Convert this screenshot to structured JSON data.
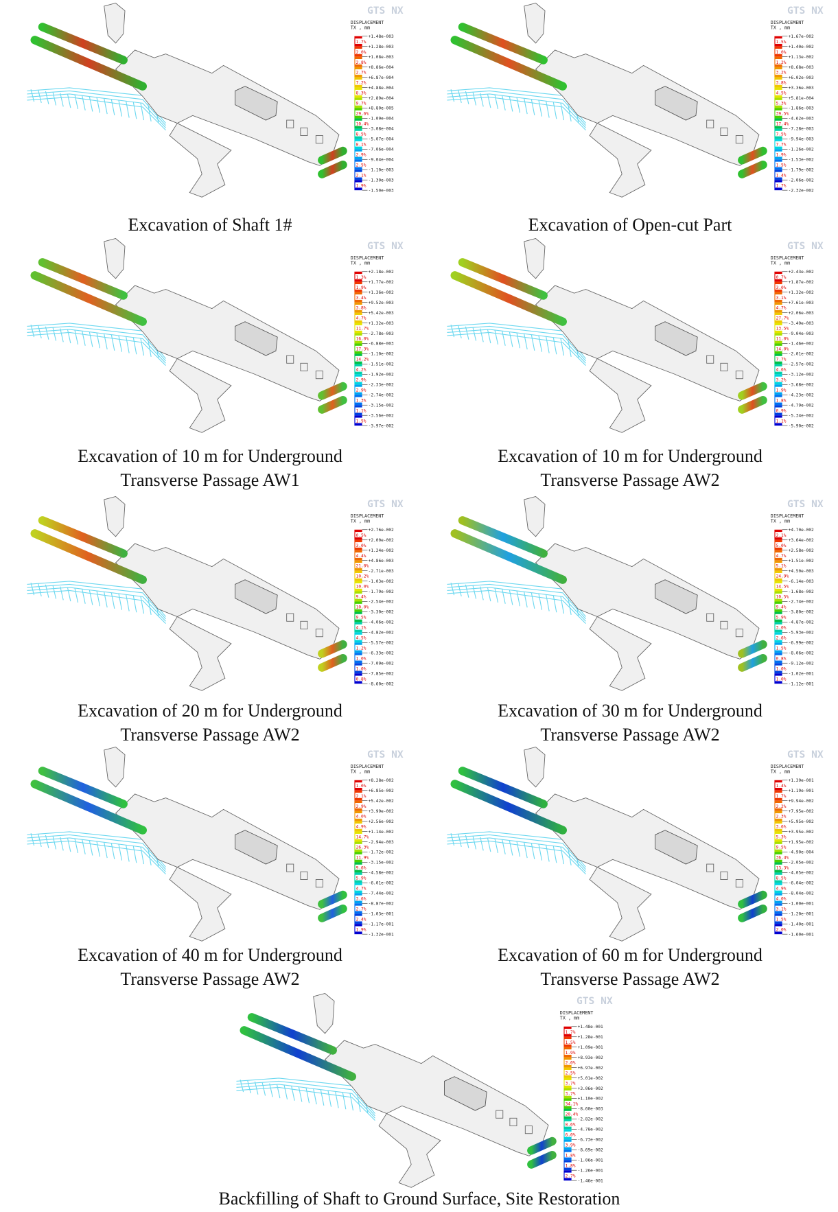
{
  "figure": {
    "logo": "GTS NX",
    "legend_title": "DISPLACEMENT",
    "legend_unit": "TX , mm",
    "panels": [
      {
        "caption": [
          "Excavation of Shaft 1#"
        ],
        "percents": [
          "1.7%",
          "2.0%",
          "2.8%",
          "2.7%",
          "7.2%",
          "8.3%",
          "9.7%",
          "29.6%",
          "10.4%",
          "8.5%",
          "8.1%",
          "2.9%",
          "2.5%",
          "2.1%",
          "1.9%"
        ],
        "values": [
          "+1.48e-003",
          "+1.28e-003",
          "+1.08e-003",
          "+8.86e-004",
          "+6.87e-004",
          "+4.88e-004",
          "+2.89e-004",
          "+8.80e-005",
          "-1.09e-004",
          "-3.08e-004",
          "-5.07e-004",
          "-7.06e-004",
          "-9.04e-004",
          "-1.10e-003",
          "-1.30e-003",
          "-1.50e-003"
        ]
      },
      {
        "caption": [
          "Excavation of Open-cut Part"
        ],
        "percents": [
          "1.5%",
          "1.0%",
          "1.2%",
          "3.2%",
          "3.8%",
          "4.5%",
          "5.3%",
          "39.5%",
          "17.4%",
          "7.5%",
          "7.7%",
          "1.9%",
          "1.5%",
          "1.4%",
          "1.7%"
        ],
        "values": [
          "+1.67e-002",
          "+1.40e-002",
          "+1.13e-002",
          "+8.68e-003",
          "+6.02e-003",
          "+3.36e-003",
          "+5.81e-004",
          "-1.86e-003",
          "-4.62e-003",
          "-7.28e-003",
          "-9.94e-003",
          "-1.26e-002",
          "-1.53e-002",
          "-1.79e-002",
          "-2.06e-002",
          "-2.32e-002"
        ]
      },
      {
        "caption": [
          "Excavation of 10 m for Underground",
          "Transverse Passage AW1"
        ],
        "percents": [
          "1.3%",
          "1.9%",
          "3.4%",
          "3.8%",
          "4.7%",
          "11.7%",
          "16.0%",
          "17.3%",
          "14.2%",
          "4.2%",
          "2.9%",
          "2.9%",
          "1.3%",
          "1.1%",
          "1.5%"
        ],
        "values": [
          "+2.18e-002",
          "+1.77e-002",
          "+1.36e-002",
          "+9.52e-003",
          "+5.42e-003",
          "+1.32e-003",
          "-2.78e-003",
          "-6.88e-003",
          "-1.10e-002",
          "-1.51e-002",
          "-1.92e-002",
          "-2.33e-002",
          "-2.74e-002",
          "-3.15e-002",
          "-3.56e-002",
          "-3.97e-002"
        ]
      },
      {
        "caption": [
          "Excavation of 10 m for Underground",
          "Transverse Passage AW2"
        ],
        "percents": [
          "0.7%",
          "3.0%",
          "3.1%",
          "4.7%",
          "27.7%",
          "13.5%",
          "11.0%",
          "14.0%",
          "7.7%",
          "4.6%",
          "3.2%",
          "1.9%",
          "1.8%",
          "0.9%",
          "1.1%"
        ],
        "values": [
          "+2.43e-002",
          "+1.87e-002",
          "+1.32e-002",
          "+7.61e-003",
          "+2.06e-003",
          "-3.49e-003",
          "-9.04e-003",
          "-1.46e-002",
          "-2.01e-002",
          "-2.57e-002",
          "-3.12e-002",
          "-3.68e-002",
          "-4.23e-002",
          "-4.79e-002",
          "-5.34e-002",
          "-5.90e-002"
        ]
      },
      {
        "caption": [
          "Excavation of 20 m for Underground",
          "Transverse Passage AW2"
        ],
        "percents": [
          "0.5%",
          "3.0%",
          "4.4%",
          "21.0%",
          "10.2%",
          "10.0%",
          "9.4%",
          "10.0%",
          "9.5%",
          "4.1%",
          "4.5%",
          "1.2%",
          "1.0%",
          "1.0%",
          "0.8%"
        ],
        "values": [
          "+2.76e-002",
          "+2.00e-002",
          "+1.24e-002",
          "+4.86e-003",
          "-2.71e-003",
          "-1.03e-002",
          "-1.79e-002",
          "-2.54e-002",
          "-3.30e-002",
          "-4.06e-002",
          "-4.82e-002",
          "-5.57e-002",
          "-6.33e-002",
          "-7.09e-002",
          "-7.85e-002",
          "-8.60e-002"
        ]
      },
      {
        "caption": [
          "Excavation of 30 m for Underground",
          "Transverse Passage AW2"
        ],
        "percents": [
          "2.1%",
          "5.0%",
          "4.7%",
          "5.1%",
          "24.9%",
          "14.5%",
          "10.5%",
          "9.4%",
          "5.9%",
          "3.0%",
          "2.6%",
          "1.5%",
          "0.8%",
          "1.0%",
          "1.0%"
        ],
        "values": [
          "+4.70e-002",
          "+3.64e-002",
          "+2.58e-002",
          "+1.51e-002",
          "+4.50e-003",
          "-6.14e-003",
          "-1.68e-002",
          "-2.74e-002",
          "-3.80e-002",
          "-4.87e-002",
          "-5.93e-002",
          "-6.99e-002",
          "-8.06e-002",
          "-9.12e-002",
          "-1.02e-001",
          "-1.12e-001"
        ]
      },
      {
        "caption": [
          "Excavation of 40 m for Underground",
          "Transverse Passage AW2"
        ],
        "percents": [
          "1.0%",
          "2.1%",
          "2.9%",
          "4.0%",
          "4.9%",
          "14.7%",
          "26.3%",
          "11.9%",
          "9.6%",
          "5.9%",
          "4.7%",
          "3.6%",
          "2.7%",
          "2.4%",
          "1.9%"
        ],
        "values": [
          "+8.28e-002",
          "+6.85e-002",
          "+5.42e-002",
          "+3.99e-002",
          "+2.56e-002",
          "+1.14e-002",
          "-2.94e-003",
          "-1.72e-002",
          "-3.15e-002",
          "-4.58e-002",
          "-6.01e-002",
          "-7.44e-002",
          "-8.87e-002",
          "-1.03e-001",
          "-1.17e-001",
          "-1.32e-001"
        ]
      },
      {
        "caption": [
          "Excavation of 60 m for Underground",
          "Transverse Passage AW2"
        ],
        "percents": [
          "1.4%",
          "1.7%",
          "2.2%",
          "2.3%",
          "3.6%",
          "5.3%",
          "9.5%",
          "36.4%",
          "13.3%",
          "8.5%",
          "4.9%",
          "4.0%",
          "3.1%",
          "1.5%",
          "2.0%"
        ],
        "values": [
          "+1.39e-001",
          "+1.19e-001",
          "+9.94e-002",
          "+7.95e-002",
          "+5.95e-002",
          "+3.95e-002",
          "+1.95e-002",
          "-4.90e-004",
          "-2.05e-002",
          "-4.05e-002",
          "-6.04e-002",
          "-8.04e-002",
          "-1.00e-001",
          "-1.20e-001",
          "-1.40e-001",
          "-1.60e-001"
        ]
      },
      {
        "caption": [
          "Backfilling of Shaft to Ground Surface, Site Restoration"
        ],
        "percents": [
          "1.7%",
          "1.5%",
          "1.9%",
          "2.0%",
          "2.5%",
          "3.7%",
          "3.7%",
          "34.1%",
          "20.4%",
          "8.6%",
          "6.0%",
          "3.9%",
          "1.8%",
          "1.8%",
          "2.7%"
        ],
        "values": [
          "+1.48e-001",
          "+1.28e-001",
          "+1.09e-001",
          "+8.93e-002",
          "+6.97e-002",
          "+5.01e-002",
          "+3.06e-002",
          "+1.10e-002",
          "-8.60e-003",
          "-2.82e-002",
          "-4.78e-002",
          "-6.73e-002",
          "-8.69e-002",
          "-1.06e-001",
          "-1.26e-001",
          "-1.46e-001"
        ]
      }
    ]
  }
}
